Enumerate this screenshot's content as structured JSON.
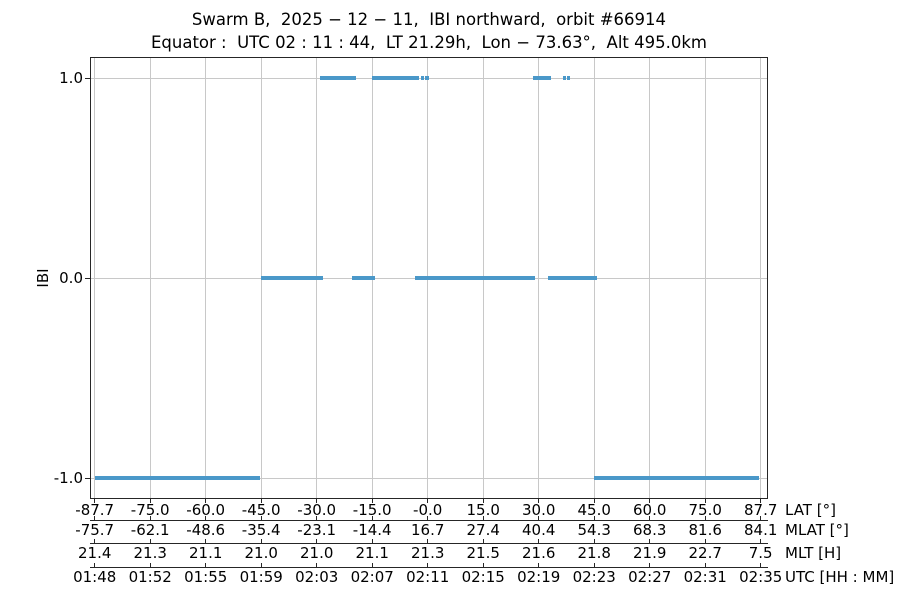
{
  "title": "Swarm B,  2025 − 12 − 11,  IBI northward,  orbit #66914",
  "subtitle": "Equator :  UTC 02 : 11 : 44,  LT 21.29h,  Lon − 73.63°,  Alt 495.0km",
  "colors": {
    "line": "#4a98c9",
    "grid": "#c8c8c8",
    "spine": "#262626",
    "text": "#000000",
    "background": "#ffffff"
  },
  "chart_data": {
    "type": "line",
    "title": "Swarm B, 2025-12-11, IBI northward, orbit #66914",
    "subtitle": "Equator: UTC 02:11:44, LT 21.29h, Lon -73.63°, Alt 495.0km",
    "ylabel": "IBI",
    "ylim": [
      -1.1,
      1.1
    ],
    "grid": true,
    "legend": "none",
    "num_ticks": 13,
    "axis_layout": {
      "first_tick_frac": 0.00547,
      "tick_step_frac": 0.0821
    },
    "y_ticks": [
      {
        "label": "1.0",
        "value": 1.0
      },
      {
        "label": "0.0",
        "value": 0.0
      },
      {
        "label": "-1.0",
        "value": -1.0
      }
    ],
    "x_axes": [
      {
        "name": "LAT [°]",
        "labels": [
          "-87.7",
          "-75.0",
          "-60.0",
          "-45.0",
          "-30.0",
          "-15.0",
          "-0.0",
          "15.0",
          "30.0",
          "45.0",
          "60.0",
          "75.0",
          "87.7"
        ]
      },
      {
        "name": "MLAT [°]",
        "labels": [
          "-75.7",
          "-62.1",
          "-48.6",
          "-35.4",
          "-23.1",
          "-14.4",
          "16.7",
          "27.4",
          "40.4",
          "54.3",
          "68.3",
          "81.6",
          "84.1"
        ]
      },
      {
        "name": "MLT [H]",
        "labels": [
          "21.4",
          "21.3",
          "21.1",
          "21.0",
          "21.0",
          "21.1",
          "21.3",
          "21.5",
          "21.6",
          "21.8",
          "21.9",
          "22.7",
          "7.5"
        ]
      },
      {
        "name": "UTC [HH : MM]",
        "labels": [
          "01:48",
          "01:52",
          "01:55",
          "01:59",
          "02:03",
          "02:07",
          "02:11",
          "02:15",
          "02:19",
          "02:23",
          "02:27",
          "02:31",
          "02:35"
        ]
      }
    ],
    "segments": [
      {
        "value": -1,
        "utc_start": "01:48:00",
        "utc_end": "01:59:42",
        "x0": 0.0055,
        "x1": 0.2507
      },
      {
        "value": 0,
        "utc_start": "01:59:44",
        "utc_end": "02:04:07",
        "x0": 0.2515,
        "x1": 0.3432
      },
      {
        "value": 1,
        "utc_start": "02:03:54",
        "utc_end": "02:06:26",
        "x0": 0.3388,
        "x1": 0.392
      },
      {
        "value": 0,
        "utc_start": "02:06:10",
        "utc_end": "02:07:45",
        "x0": 0.3861,
        "x1": 0.4194
      },
      {
        "value": 1,
        "utc_start": "02:07:34",
        "utc_end": "02:10:53",
        "x0": 0.4157,
        "x1": 0.4852
      },
      {
        "value": 1,
        "utc_start": "02:11:04",
        "utc_end": "02:11:14",
        "x0": 0.4889,
        "x1": 0.4926
      },
      {
        "value": 1,
        "utc_start": "02:11:21",
        "utc_end": "02:11:36",
        "x0": 0.4948,
        "x1": 0.5
      },
      {
        "value": 0,
        "utc_start": "02:10:36",
        "utc_end": "02:19:04",
        "x0": 0.4793,
        "x1": 0.6568
      },
      {
        "value": 1,
        "utc_start": "02:18:56",
        "utc_end": "02:20:12",
        "x0": 0.6538,
        "x1": 0.6805
      },
      {
        "value": 0,
        "utc_start": "02:20:00",
        "utc_end": "02:23:27",
        "x0": 0.676,
        "x1": 0.7485
      },
      {
        "value": 1,
        "utc_start": "02:21:01",
        "utc_end": "02:21:15",
        "x0": 0.6975,
        "x1": 0.7027
      },
      {
        "value": 1,
        "utc_start": "02:21:20",
        "utc_end": "02:21:35",
        "x0": 0.7041,
        "x1": 0.7093
      },
      {
        "value": -1,
        "utc_start": "02:23:14",
        "utc_end": "02:35:00",
        "x0": 0.7441,
        "x1": 0.9889
      }
    ]
  }
}
